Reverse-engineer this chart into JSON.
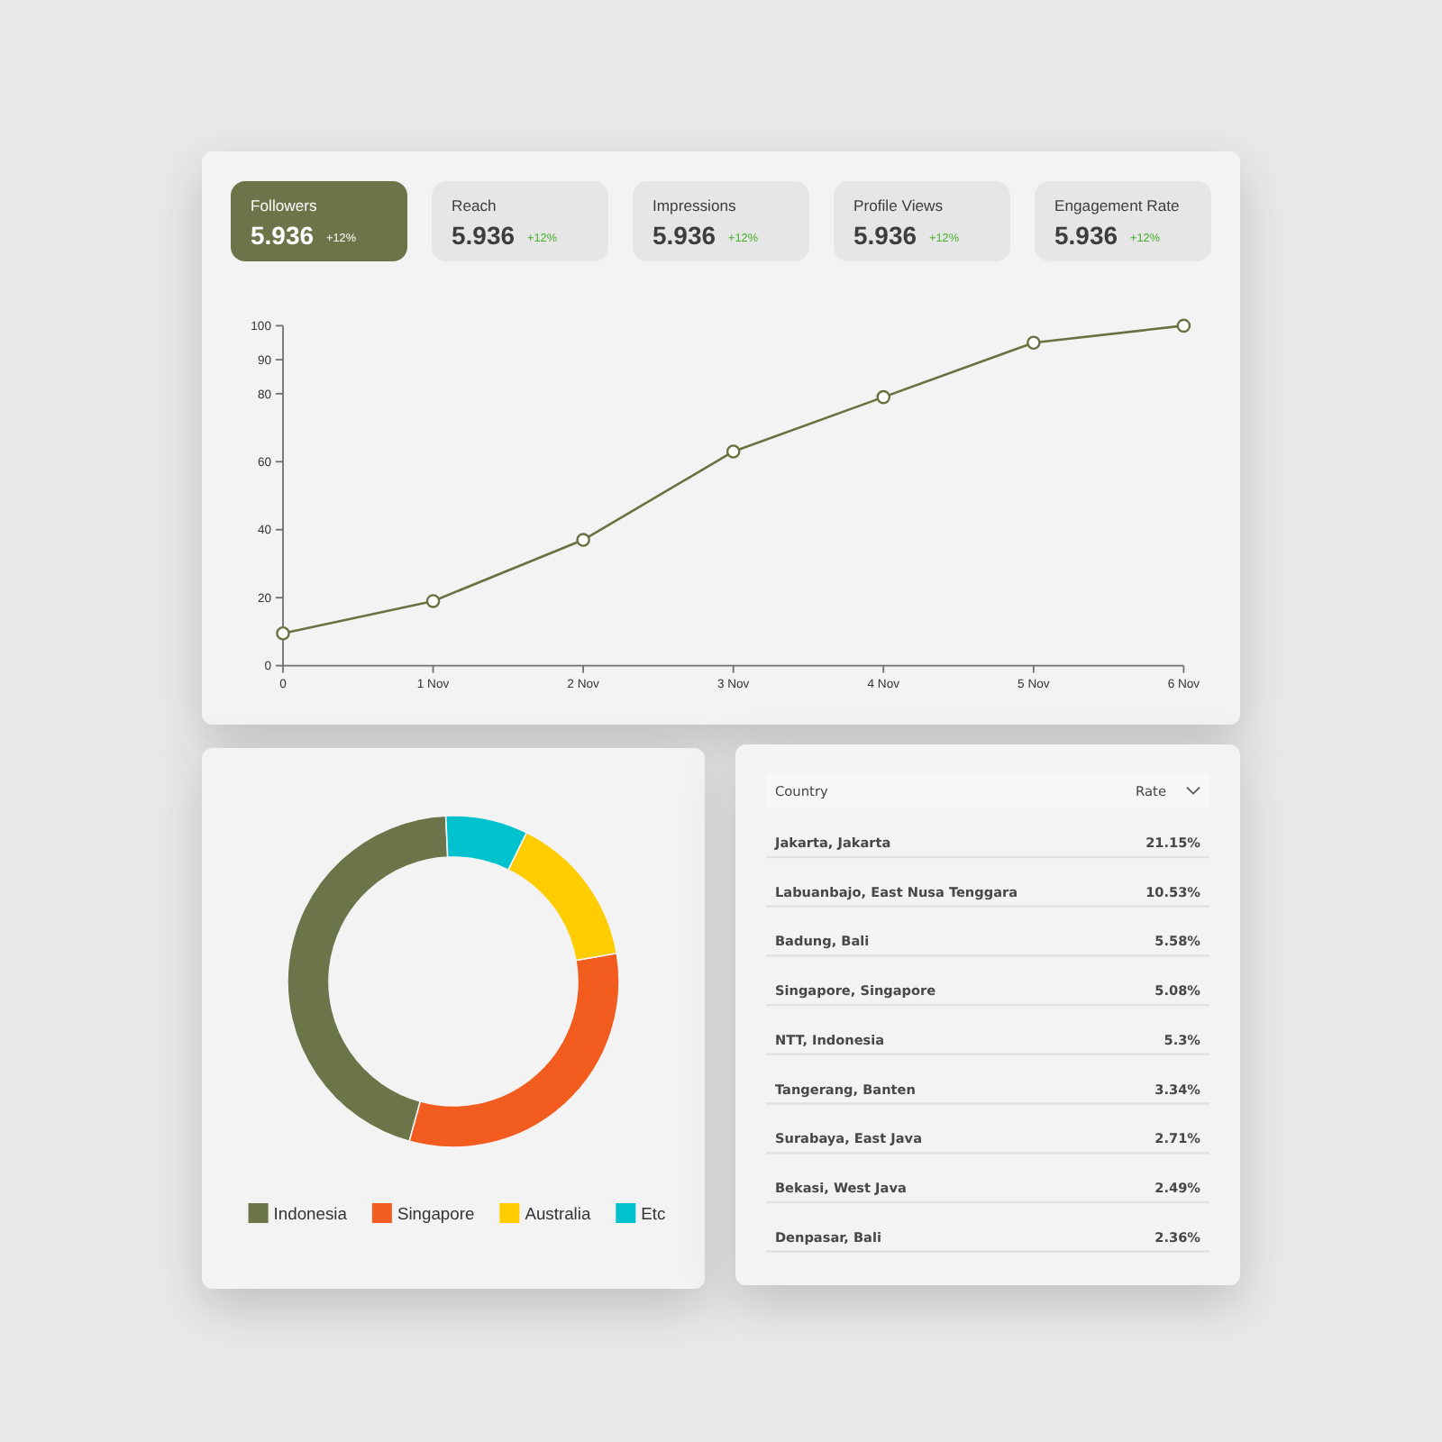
{
  "chart_data": [
    {
      "type": "other",
      "categories": [
        "Followers",
        "Reach",
        "Impressions",
        "Profile Views",
        "Engagement Rate"
      ],
      "data_labels": true,
      "series": [
        {
          "values": [
            5.936,
            5.936,
            5.936,
            5.936,
            5.936
          ],
          "colors": [
            "#6b7549",
            "#e6e6e6",
            "#e6e6e6",
            "#e6e6e6",
            "#e6e6e6"
          ]
        },
        {
          "values": [
            12,
            12,
            12,
            12,
            12
          ],
          "value_labels": [
            "+12%",
            "+12%",
            "+12%",
            "+12%",
            "+12%"
          ]
        }
      ]
    },
    {
      "type": "line",
      "categories": [
        "0",
        "1 Nov",
        "2 Nov",
        "3 Nov",
        "4 Nov",
        "5 Nov",
        "6 Nov"
      ],
      "values": [
        9.5,
        19,
        37,
        63,
        79,
        95,
        100
      ],
      "color": "#6b7040",
      "marker": "circle",
      "ylim": [
        0,
        100
      ],
      "yticks": [
        0,
        20,
        40,
        60,
        80,
        90,
        100
      ]
    },
    {
      "type": "donut",
      "categories": [
        "Indonesia",
        "Singapore",
        "Australia",
        "Etc"
      ],
      "values": [
        45,
        32,
        15,
        8
      ],
      "colors": [
        "#6b7549",
        "#f25c1f",
        "#ffcc00",
        "#00c2cf"
      ],
      "legend": "bottom"
    },
    {
      "type": "other",
      "xlabel": "Country",
      "ylabel": "Rate",
      "categories": [
        "Jakarta, Jakarta",
        "Labuanbajo, East Nusa Tenggara",
        "Badung, Bali",
        "Singapore, Singapore",
        "NTT, Indonesia",
        "Tangerang, Banten",
        "Surabaya, East Java",
        "Bekasi, West Java",
        "Denpasar, Bali"
      ],
      "values": [
        21.15,
        10.53,
        5.58,
        5.08,
        5.3,
        3.34,
        2.71,
        2.49,
        2.36
      ],
      "value_labels": [
        "21.15%",
        "10.53%",
        "5.58%",
        "5.08%",
        "5.3%",
        "3.34%",
        "2.71%",
        "2.49%",
        "2.36%"
      ]
    }
  ]
}
